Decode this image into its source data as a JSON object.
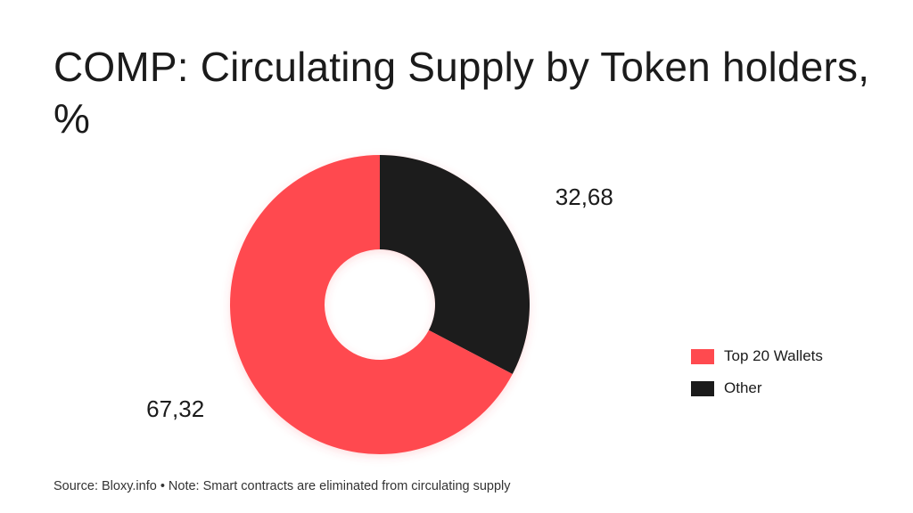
{
  "chart_data": {
    "type": "pie",
    "title": "COMP: Circulating Supply by Token holders, %",
    "categories": [
      "Top 20 Wallets",
      "Other"
    ],
    "values": [
      67.32,
      32.68
    ],
    "data_labels": [
      "67,32",
      "32,68"
    ],
    "colors": [
      "#ff4a4f",
      "#1b1b1b"
    ],
    "donut": true,
    "legend_position": "right",
    "grid": false
  },
  "footer": {
    "source": "Source: Bloxy.info • Note: Smart contracts are eliminated from circulating supply"
  }
}
